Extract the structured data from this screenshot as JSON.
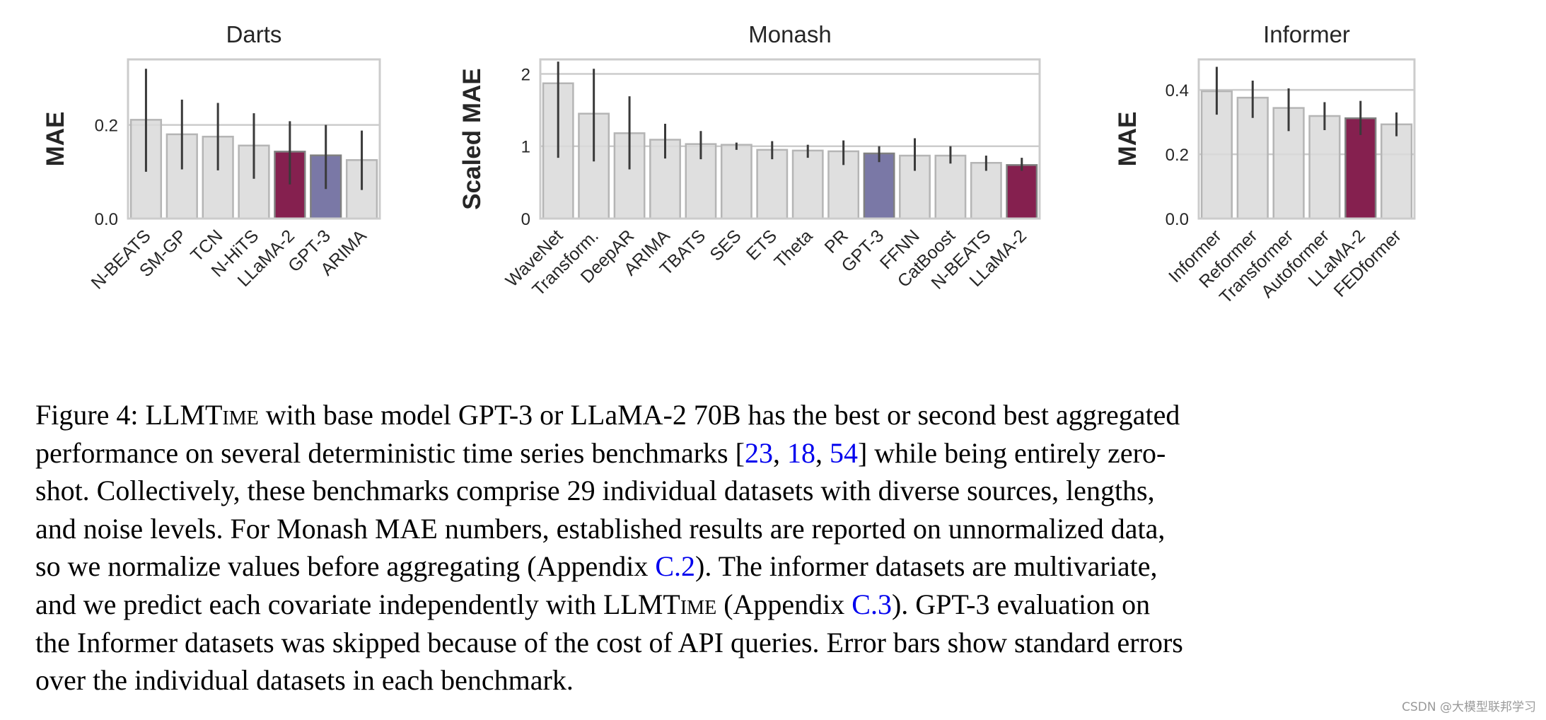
{
  "chart_data": [
    {
      "type": "bar",
      "title": "Darts",
      "ylabel": "MAE",
      "xlabel": "",
      "ylim": [
        0,
        0.34
      ],
      "yticks": [
        "0.0",
        "0.2"
      ],
      "ytick_values": [
        0,
        0.2
      ],
      "grid": true,
      "categories": [
        "N-BEATS",
        "SM-GP",
        "TCN",
        "N-HiTS",
        "LLaMA-2",
        "GPT-3",
        "ARIMA"
      ],
      "values": [
        0.211,
        0.18,
        0.175,
        0.156,
        0.143,
        0.135,
        0.125
      ],
      "err_low": [
        0.1,
        0.105,
        0.103,
        0.085,
        0.073,
        0.063,
        0.061
      ],
      "err_high": [
        0.32,
        0.254,
        0.247,
        0.225,
        0.208,
        0.2,
        0.188
      ]
    },
    {
      "type": "bar",
      "title": "Monash",
      "ylabel": "Scaled MAE",
      "xlabel": "",
      "ylim": [
        0,
        2.2
      ],
      "yticks": [
        "0",
        "1",
        "2"
      ],
      "ytick_values": [
        0,
        1,
        2
      ],
      "grid": true,
      "categories": [
        "WaveNet",
        "Transform.",
        "DeepAR",
        "ARIMA",
        "TBATS",
        "SES",
        "ETS",
        "Theta",
        "PR",
        "GPT-3",
        "FFNN",
        "CatBoost",
        "N-BEATS",
        "LLaMA-2"
      ],
      "values": [
        1.87,
        1.45,
        1.18,
        1.09,
        1.03,
        1.02,
        0.95,
        0.94,
        0.93,
        0.9,
        0.87,
        0.87,
        0.77,
        0.74
      ],
      "err_low": [
        0.84,
        0.79,
        0.68,
        0.83,
        0.82,
        0.95,
        0.82,
        0.84,
        0.74,
        0.78,
        0.66,
        0.76,
        0.66,
        0.66
      ],
      "err_high": [
        2.17,
        2.07,
        1.69,
        1.31,
        1.21,
        1.05,
        1.07,
        1.02,
        1.08,
        1.0,
        1.11,
        1.0,
        0.87,
        0.84
      ]
    },
    {
      "type": "bar",
      "title": "Informer",
      "ylabel": "MAE",
      "xlabel": "",
      "ylim": [
        0,
        0.495
      ],
      "yticks": [
        "0.0",
        "0.2",
        "0.4"
      ],
      "ytick_values": [
        0,
        0.2,
        0.4
      ],
      "grid": true,
      "categories": [
        "Informer",
        "Reformer",
        "Transformer",
        "Autoformer",
        "LLaMA-2",
        "FEDformer"
      ],
      "values": [
        0.396,
        0.376,
        0.344,
        0.319,
        0.312,
        0.293
      ],
      "err_low": [
        0.323,
        0.313,
        0.272,
        0.275,
        0.26,
        0.256
      ],
      "err_high": [
        0.472,
        0.429,
        0.405,
        0.362,
        0.366,
        0.33
      ]
    }
  ],
  "colors": {
    "default_bar": "#d9d9d9",
    "LLaMA-2": "#85204f",
    "GPT-3": "#7a78a6",
    "error_bar": "#3a3a3a",
    "frame": "#cccccc"
  },
  "caption": {
    "lines": [
      [
        {
          "t": "Figure 4: LLMT"
        },
        {
          "t": "ime",
          "sc": true
        },
        {
          "t": " with base model GPT-3 or LLaMA-2 70B has the best or second best aggregated"
        }
      ],
      [
        {
          "t": "performance on several deterministic time series benchmarks ["
        },
        {
          "t": "23",
          "link": true
        },
        {
          "t": ", "
        },
        {
          "t": "18",
          "link": true
        },
        {
          "t": ", "
        },
        {
          "t": "54",
          "link": true
        },
        {
          "t": "] while being entirely zero-"
        }
      ],
      [
        {
          "t": "shot. Collectively, these benchmarks comprise 29 individual datasets with diverse sources, lengths,"
        }
      ],
      [
        {
          "t": "and noise levels. For Monash MAE numbers, established results are reported on unnormalized data,"
        }
      ],
      [
        {
          "t": "so we normalize values before aggregating (Appendix "
        },
        {
          "t": "C.2",
          "link": true
        },
        {
          "t": "). The informer datasets are multivariate,"
        }
      ],
      [
        {
          "t": "and we predict each covariate independently with LLMT"
        },
        {
          "t": "ime",
          "sc": true
        },
        {
          "t": " (Appendix "
        },
        {
          "t": "C.3",
          "link": true
        },
        {
          "t": "). GPT-3 evaluation on"
        }
      ],
      [
        {
          "t": "the Informer datasets was skipped because of the cost of API queries. Error bars show standard errors"
        }
      ],
      [
        {
          "t": "over the individual datasets in each benchmark."
        }
      ]
    ]
  },
  "watermark": "CSDN @大模型联邦学习"
}
